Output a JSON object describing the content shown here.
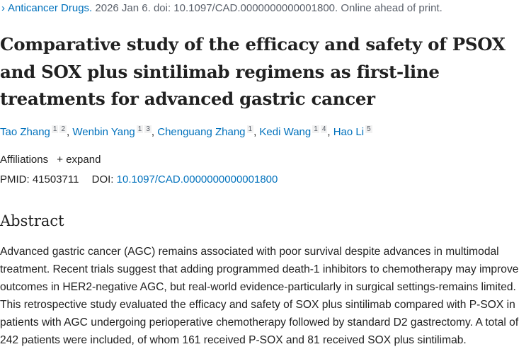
{
  "citation": {
    "journal": "Anticancer Drugs.",
    "details": "2026 Jan 6. doi: 10.1097/CAD.0000000000001800. Online ahead of print."
  },
  "title": "Comparative study of the efficacy and safety of PSOX and SOX plus sintilimab regimens as first-line treatments for advanced gastric cancer",
  "authors": [
    {
      "name": "Tao Zhang",
      "affs": [
        "1",
        "2"
      ]
    },
    {
      "name": "Wenbin Yang",
      "affs": [
        "1",
        "3"
      ]
    },
    {
      "name": "Chenguang Zhang",
      "affs": [
        "1"
      ]
    },
    {
      "name": "Kedi Wang",
      "affs": [
        "1",
        "4"
      ]
    },
    {
      "name": "Hao Li",
      "affs": [
        "5"
      ]
    }
  ],
  "affiliations": {
    "label": "Affiliations",
    "expand": "expand"
  },
  "ids": {
    "pmid_label": "PMID:",
    "pmid": "41503711",
    "doi_label": "DOI:",
    "doi": "10.1097/CAD.0000000000001800"
  },
  "abstract": {
    "heading": "Abstract",
    "text": "Advanced gastric cancer (AGC) remains associated with poor survival despite advances in multimodal treatment. Recent trials suggest that adding programmed death-1 inhibitors to chemotherapy may improve outcomes in HER2-negative AGC, but real-world evidence-particularly in surgical settings-remains limited. This retrospective study evaluated the efficacy and safety of SOX plus sintilimab compared with P-SOX in patients with AGC undergoing perioperative chemotherapy followed by standard D2 gastrectomy. A total of 242 patients were included, of whom 161 received P-SOX and 81 received SOX plus sintilimab."
  }
}
